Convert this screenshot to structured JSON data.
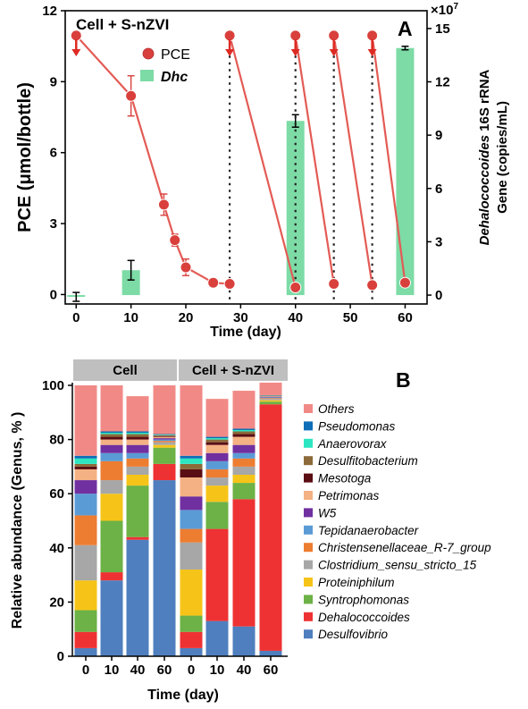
{
  "chart_data": [
    {
      "panel": "A",
      "type": "line",
      "title": "Cell + S-nZVI",
      "xlabel": "Time (day)",
      "ylabel": "PCE (μmol/bottle)",
      "y2label_line1_italic": "Dehalococcoides",
      "y2label_line1_rest": " 16S rRNA",
      "y2label_line2": "Gene (copies/mL)",
      "y2_multiplier": "×10",
      "y2_multiplier_exp": "7",
      "xlim": [
        -2,
        64
      ],
      "ylim": [
        -0.4,
        12.0
      ],
      "y2lim": [
        -0.5,
        16.0
      ],
      "xticks": [
        0,
        10,
        20,
        30,
        40,
        50,
        60
      ],
      "yticks": [
        0,
        3,
        6,
        9,
        12
      ],
      "y2ticks": [
        0,
        3,
        6,
        9,
        12,
        15
      ],
      "legend": [
        {
          "label": "PCE",
          "italic": false
        },
        {
          "label": "Dhc",
          "italic": true
        }
      ],
      "pce_segments": [
        [
          {
            "x": 0,
            "y": 10.95,
            "err": 0
          },
          {
            "x": 10,
            "y": 8.4,
            "err": 0.85
          },
          {
            "x": 16,
            "y": 3.8,
            "err": 0.45
          },
          {
            "x": 18,
            "y": 2.3,
            "err": 0.25
          },
          {
            "x": 20,
            "y": 1.15,
            "err": 0.35
          },
          {
            "x": 25,
            "y": 0.5,
            "err": 0
          },
          {
            "x": 28,
            "y": 0.45,
            "err": 0
          }
        ],
        [
          {
            "x": 28,
            "y": 10.95,
            "err": 0
          },
          {
            "x": 40,
            "y": 0.3,
            "err": 0
          }
        ],
        [
          {
            "x": 40,
            "y": 10.95,
            "err": 0
          },
          {
            "x": 47,
            "y": 0.45,
            "err": 0
          }
        ],
        [
          {
            "x": 47,
            "y": 10.95,
            "err": 0
          },
          {
            "x": 54,
            "y": 0.4,
            "err": 0
          }
        ],
        [
          {
            "x": 54,
            "y": 10.95,
            "err": 0
          },
          {
            "x": 60,
            "y": 0.5,
            "err": 0
          }
        ]
      ],
      "dhc_bars": [
        {
          "x": 0,
          "value": -0.1,
          "err": 0.25
        },
        {
          "x": 10,
          "value": 1.4,
          "err": 0.55
        },
        {
          "x": 40,
          "value": 9.8,
          "err": 0.35
        },
        {
          "x": 60,
          "value": 13.9,
          "err": 0.1
        }
      ],
      "spike_days": [
        0,
        28,
        40,
        47,
        54
      ],
      "dotted_lines_x": [
        28,
        40,
        47,
        54
      ],
      "colors": {
        "pce": "#d9403c",
        "pce_line": "#e35b55",
        "dhc": "#7ddba6",
        "arrow": "#dd2a23",
        "dotted": "#222222"
      }
    },
    {
      "panel": "B",
      "type": "bar",
      "stacked": true,
      "xlabel": "Time (day)",
      "ylabel": "Relative abundance (Genus, % )",
      "ylim": [
        0,
        100
      ],
      "yticks": [
        0,
        20,
        40,
        60,
        80,
        100
      ],
      "group_labels": [
        "Cell",
        "Cell + S-nZVI"
      ],
      "categories": [
        "0",
        "10",
        "40",
        "60",
        "0",
        "10",
        "40",
        "60"
      ],
      "series": [
        {
          "name": "Desulfovibrio",
          "color": "#4f7fbe",
          "values": [
            3,
            28,
            43,
            65,
            3,
            13,
            11,
            2
          ]
        },
        {
          "name": "Dehalococcoides",
          "color": "#ee3233",
          "values": [
            6,
            3,
            1,
            6,
            6,
            34,
            47,
            91
          ]
        },
        {
          "name": "Syntrophomonas",
          "color": "#6cb246",
          "values": [
            8,
            19,
            19,
            6,
            6,
            10,
            6,
            1
          ]
        },
        {
          "name": "Proteiniphilum",
          "color": "#f6c418",
          "values": [
            11,
            10,
            4,
            1,
            17,
            6,
            3,
            0.5
          ]
        },
        {
          "name": "Clostridium_sensu_stricto_15",
          "color": "#a7a7a7",
          "values": [
            13,
            5,
            3,
            1,
            10,
            3,
            3,
            0.5
          ]
        },
        {
          "name": "Christensenellaceae_R-7_group",
          "color": "#ed7d31",
          "values": [
            11,
            7,
            3,
            0.5,
            5,
            3,
            3,
            0.3
          ]
        },
        {
          "name": "Tepidanaerobacter",
          "color": "#5b9bd5",
          "values": [
            8,
            3,
            2,
            0.5,
            7,
            3,
            2,
            0.3
          ]
        },
        {
          "name": "W5",
          "color": "#7030a0",
          "values": [
            5,
            3,
            3,
            0.5,
            5,
            3,
            3,
            0.2
          ]
        },
        {
          "name": "Petrimonas",
          "color": "#f4b183",
          "values": [
            4,
            2,
            2,
            0.5,
            7,
            3,
            3,
            0.2
          ]
        },
        {
          "name": "Mesotoga",
          "color": "#5a0e13",
          "values": [
            1,
            1,
            1,
            0.3,
            3,
            1,
            1,
            0.1
          ]
        },
        {
          "name": "Desulfitobacterium",
          "color": "#8c6a3a",
          "values": [
            1,
            1,
            1,
            0.3,
            2,
            1,
            1,
            0.1
          ]
        },
        {
          "name": "Anaerovorax",
          "color": "#2ce6c1",
          "values": [
            2,
            0.5,
            0.5,
            0.2,
            2,
            0.5,
            0.5,
            0.1
          ]
        },
        {
          "name": "Pseudomonas",
          "color": "#0e6fb8",
          "values": [
            1,
            0.5,
            0.5,
            0.2,
            1,
            0.5,
            0.5,
            0.1
          ]
        },
        {
          "name": "Others",
          "color": "#f18a86",
          "values": [
            26,
            17,
            13,
            18,
            26,
            14,
            14,
            4.6
          ]
        }
      ]
    }
  ]
}
